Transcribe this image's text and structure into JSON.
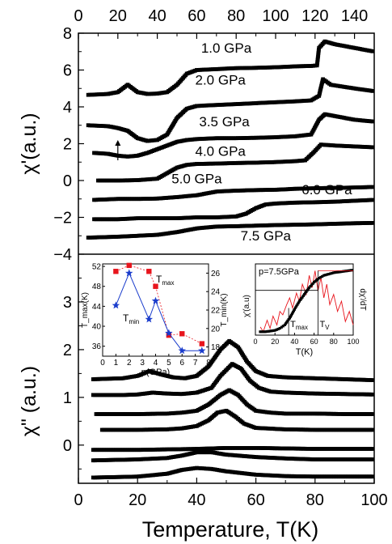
{
  "chart_data": [
    {
      "type": "line",
      "panel": "upper",
      "ylabel": "χ'(a.u.)",
      "xlabel": "",
      "x_top_ticks": [
        "0",
        "20",
        "40",
        "60",
        "80",
        "100",
        "120",
        "140"
      ],
      "xlim_top": [
        0,
        150
      ],
      "ylim": [
        -4,
        8
      ],
      "y_ticks": [
        "-4",
        "-2",
        "0",
        "2",
        "4",
        "6",
        "8"
      ],
      "series": [
        {
          "name": "1.0 GPa",
          "label_at": [
            75,
            6.95
          ],
          "x": [
            5,
            15,
            20,
            25,
            30,
            35,
            40,
            45,
            50,
            55,
            60,
            70,
            80,
            90,
            100,
            110,
            118,
            121,
            122,
            125,
            130,
            140,
            150
          ],
          "y": [
            4.65,
            4.7,
            4.8,
            5.2,
            4.8,
            4.7,
            4.72,
            4.8,
            5.2,
            5.8,
            6.0,
            6.05,
            6.1,
            6.12,
            6.15,
            6.2,
            6.22,
            6.25,
            7.2,
            7.55,
            7.4,
            7.2,
            7.0
          ]
        },
        {
          "name": "2.0 GPa",
          "label_at": [
            72,
            5.2
          ],
          "x": [
            5,
            15,
            20,
            25,
            30,
            35,
            40,
            45,
            50,
            55,
            60,
            70,
            80,
            90,
            100,
            110,
            118,
            122,
            124,
            128,
            140,
            150
          ],
          "y": [
            3.0,
            2.95,
            2.85,
            2.7,
            2.3,
            2.15,
            2.2,
            2.5,
            3.4,
            3.9,
            4.05,
            4.1,
            4.15,
            4.2,
            4.25,
            4.3,
            4.35,
            4.6,
            5.5,
            5.2,
            5.0,
            4.85
          ]
        },
        {
          "name": "3.5 GPa",
          "label_at": [
            74,
            2.95
          ],
          "x": [
            8,
            15,
            20,
            25,
            30,
            35,
            40,
            45,
            50,
            55,
            60,
            70,
            80,
            90,
            100,
            110,
            118,
            122,
            125,
            130,
            140,
            150
          ],
          "y": [
            1.5,
            1.45,
            1.35,
            1.3,
            1.35,
            1.5,
            1.7,
            1.9,
            2.1,
            2.2,
            2.25,
            2.3,
            2.3,
            2.32,
            2.35,
            2.4,
            2.5,
            3.3,
            3.6,
            3.5,
            3.3,
            3.2
          ]
        },
        {
          "name": "4.0 GPa",
          "label_at": [
            72,
            1.35
          ],
          "x": [
            10,
            20,
            30,
            40,
            45,
            50,
            55,
            60,
            70,
            80,
            90,
            100,
            110,
            115,
            119,
            123,
            130,
            140,
            150
          ],
          "y": [
            0.0,
            0.0,
            0.02,
            0.1,
            0.4,
            0.7,
            0.85,
            0.9,
            0.92,
            0.95,
            0.97,
            1.0,
            1.05,
            1.1,
            1.5,
            1.95,
            1.9,
            1.85,
            1.8
          ]
        },
        {
          "name": "5.0 GPa",
          "label_at": [
            60,
            -0.15
          ],
          "x": [
            8,
            20,
            30,
            40,
            50,
            60,
            70,
            80,
            90,
            100,
            110,
            120,
            130,
            140,
            150
          ],
          "y": [
            -1.05,
            -1.0,
            -1.0,
            -0.98,
            -0.9,
            -0.8,
            -0.6,
            -0.55,
            -0.52,
            -0.5,
            -0.45,
            -0.42,
            -0.4,
            -0.38,
            -0.35
          ]
        },
        {
          "name": "6.0 GPa",
          "label_at": [
            126,
            -0.75
          ],
          "x": [
            8,
            20,
            30,
            40,
            50,
            60,
            70,
            80,
            85,
            90,
            95,
            100,
            110,
            120,
            130,
            140,
            150
          ],
          "y": [
            -2.1,
            -2.1,
            -2.05,
            -2.05,
            -2.05,
            -2.0,
            -2.0,
            -1.95,
            -1.8,
            -1.5,
            -1.3,
            -1.25,
            -1.2,
            -1.18,
            -1.15,
            -1.1,
            -1.05
          ]
        },
        {
          "name": "7.5 GPa",
          "label_at": [
            95,
            -3.25
          ],
          "x": [
            5,
            20,
            30,
            40,
            50,
            60,
            70,
            80,
            90,
            100,
            110,
            120,
            130,
            140,
            150
          ],
          "y": [
            -3.1,
            -3.05,
            -3.0,
            -2.95,
            -2.8,
            -2.6,
            -2.5,
            -2.48,
            -2.45,
            -2.42,
            -2.4,
            -2.38,
            -2.35,
            -2.32,
            -2.3
          ]
        }
      ],
      "annotations": [
        {
          "type": "arrow",
          "x": 20,
          "y_from": 1.1,
          "y_to": 2.2
        }
      ]
    },
    {
      "type": "line",
      "panel": "lower",
      "ylabel": "χ\" (a.u.)",
      "xlabel": "Temperature, T(K)",
      "x_ticks": [
        "0",
        "20",
        "40",
        "60",
        "80",
        "100"
      ],
      "xlim": [
        0,
        100
      ],
      "ylim": [
        -0.8,
        4.0
      ],
      "y_ticks": [
        "0",
        "1",
        "2",
        "3"
      ],
      "series": [
        {
          "x": [
            5,
            15,
            20,
            24,
            28,
            32,
            36,
            40,
            44,
            48,
            51,
            54,
            57,
            60,
            64,
            70,
            80,
            90,
            100
          ],
          "y": [
            1.38,
            1.4,
            1.45,
            1.55,
            1.48,
            1.42,
            1.4,
            1.45,
            1.65,
            2.0,
            2.18,
            2.05,
            1.75,
            1.55,
            1.45,
            1.42,
            1.4,
            1.38,
            1.36
          ]
        },
        {
          "x": [
            5,
            15,
            20,
            25,
            30,
            35,
            40,
            45,
            48,
            52,
            55,
            58,
            61,
            65,
            70,
            80,
            90,
            100
          ],
          "y": [
            1.05,
            1.05,
            1.06,
            1.1,
            1.08,
            1.07,
            1.1,
            1.2,
            1.45,
            1.7,
            1.6,
            1.35,
            1.2,
            1.12,
            1.1,
            1.08,
            1.07,
            1.06
          ]
        },
        {
          "x": [
            6,
            20,
            30,
            35,
            40,
            44,
            48,
            51,
            54,
            57,
            60,
            65,
            70,
            80,
            90,
            100
          ],
          "y": [
            0.65,
            0.65,
            0.66,
            0.68,
            0.72,
            0.85,
            1.05,
            1.15,
            1.05,
            0.85,
            0.72,
            0.68,
            0.66,
            0.66,
            0.65,
            0.65
          ]
        },
        {
          "x": [
            8,
            20,
            30,
            35,
            40,
            44,
            47,
            50,
            53,
            56,
            60,
            70,
            80,
            90,
            100
          ],
          "y": [
            0.32,
            0.32,
            0.33,
            0.35,
            0.4,
            0.52,
            0.68,
            0.72,
            0.6,
            0.45,
            0.36,
            0.33,
            0.32,
            0.32,
            0.32
          ]
        },
        {
          "x": [
            5,
            20,
            30,
            40,
            50,
            60,
            70,
            80,
            90,
            100
          ],
          "y": [
            -0.1,
            -0.1,
            -0.09,
            -0.08,
            -0.06,
            -0.06,
            -0.07,
            -0.08,
            -0.08,
            -0.08
          ]
        },
        {
          "x": [
            5,
            20,
            30,
            35,
            40,
            45,
            50,
            60,
            70,
            80,
            90,
            100
          ],
          "y": [
            -0.32,
            -0.3,
            -0.27,
            -0.22,
            -0.15,
            -0.15,
            -0.2,
            -0.25,
            -0.28,
            -0.3,
            -0.3,
            -0.3
          ]
        },
        {
          "x": [
            5,
            20,
            30,
            35,
            40,
            45,
            50,
            60,
            70,
            80,
            90,
            100
          ],
          "y": [
            -0.68,
            -0.66,
            -0.6,
            -0.52,
            -0.48,
            -0.5,
            -0.55,
            -0.62,
            -0.65,
            -0.66,
            -0.66,
            -0.66
          ]
        }
      ]
    },
    {
      "type": "scatter",
      "panel": "inset-left",
      "xlabel": "p(GPa)",
      "ylabel_left": "T_max(K)",
      "ylabel_right": "T_min(K)",
      "xlim": [
        0,
        8
      ],
      "ylim_left": [
        34,
        52.5
      ],
      "ylim_right": [
        17,
        27
      ],
      "x_ticks": [
        "0",
        "1",
        "2",
        "3",
        "4",
        "5",
        "6",
        "7",
        "8"
      ],
      "y_left_ticks": [
        "36",
        "40",
        "44",
        "48",
        "52"
      ],
      "y_right_ticks": [
        "18",
        "20",
        "22",
        "24",
        "26"
      ],
      "series": [
        {
          "name": "T",
          "subscript": "max",
          "color": "#e8141c",
          "marker": "square",
          "axis": "left",
          "x": [
            1.0,
            2.0,
            3.5,
            4.0,
            5.0,
            6.0,
            7.5
          ],
          "y": [
            51.0,
            52.2,
            51.0,
            48.0,
            38.2,
            38.5,
            36.5
          ]
        },
        {
          "name": "T",
          "subscript": "min",
          "color": "#1a3ccc",
          "marker": "star",
          "axis": "right",
          "x": [
            1.0,
            2.0,
            3.5,
            4.0,
            5.0,
            6.0,
            7.5
          ],
          "y": [
            22.5,
            26.0,
            21.0,
            23.0,
            19.5,
            17.6,
            17.6
          ]
        }
      ]
    },
    {
      "type": "line",
      "panel": "inset-right",
      "title": "p=7.5GPa",
      "xlabel": "T(K)",
      "ylabel_left": "χ'(a.u)",
      "ylabel_right": "dχ'/dT",
      "xlim": [
        0,
        100
      ],
      "x_ticks": [
        "0",
        "20",
        "40",
        "60",
        "80",
        "100"
      ],
      "markers": [
        {
          "label": "T",
          "subscript": "max",
          "x": 34
        },
        {
          "label": "T",
          "subscript": "V",
          "x": 64
        }
      ],
      "series": [
        {
          "name": "χ'",
          "color": "#000000",
          "x": [
            5,
            10,
            15,
            20,
            25,
            30,
            35,
            40,
            45,
            50,
            55,
            60,
            65,
            70,
            75,
            80,
            85,
            90,
            95,
            100
          ],
          "y": [
            0.05,
            0.05,
            0.06,
            0.07,
            0.1,
            0.15,
            0.25,
            0.38,
            0.5,
            0.6,
            0.7,
            0.78,
            0.84,
            0.88,
            0.9,
            0.92,
            0.93,
            0.94,
            0.95,
            0.96
          ]
        },
        {
          "name": "dχ'/dT",
          "color": "#e8141c",
          "x": [
            5,
            8,
            12,
            15,
            18,
            22,
            25,
            28,
            32,
            35,
            38,
            42,
            45,
            48,
            52,
            55,
            58,
            61,
            64,
            67,
            70,
            73,
            76,
            80,
            84,
            88,
            92,
            96,
            100
          ],
          "y": [
            0.12,
            0.05,
            0.22,
            0.1,
            0.28,
            0.15,
            0.35,
            0.3,
            0.45,
            0.55,
            0.4,
            0.62,
            0.5,
            0.75,
            0.6,
            0.88,
            0.7,
            0.95,
            0.65,
            0.85,
            0.55,
            0.75,
            0.45,
            0.6,
            0.35,
            0.5,
            0.2,
            0.35,
            0.15
          ]
        }
      ]
    }
  ]
}
